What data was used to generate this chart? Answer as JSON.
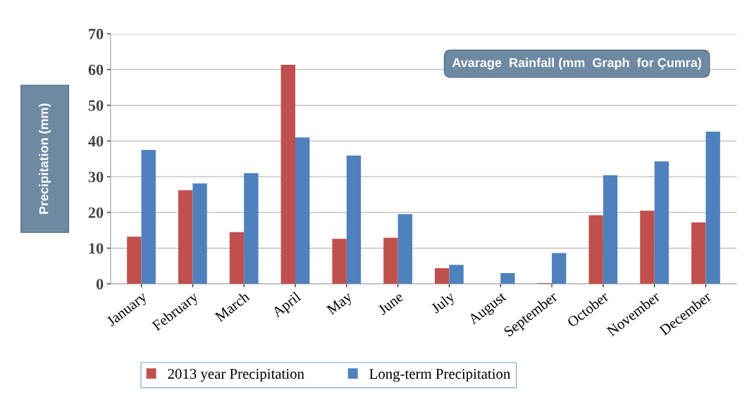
{
  "chart_data": {
    "type": "bar",
    "title": "Avarage  Rainfall (mm  Graph  for Çumra)",
    "ylabel": "Precipitation (mm)",
    "categories": [
      "January",
      "February",
      "March",
      "April",
      "May",
      "June",
      "July",
      "August",
      "September",
      "October",
      "November",
      "December"
    ],
    "series": [
      {
        "name": "2013 year Precipitation",
        "color": "#c0504d",
        "values": [
          13.2,
          26.2,
          14.5,
          61.3,
          12.6,
          12.9,
          4.4,
          0,
          0.2,
          19.2,
          20.5,
          17.2
        ]
      },
      {
        "name": "Long-term Precipitation",
        "color": "#4f81bd",
        "values": [
          37.5,
          28.1,
          31.0,
          41.0,
          35.9,
          19.5,
          5.3,
          3.0,
          8.6,
          30.4,
          34.3,
          42.6
        ]
      }
    ],
    "ylim": [
      0,
      70
    ],
    "yticks": [
      0,
      10,
      20,
      30,
      40,
      50,
      60,
      70
    ],
    "grid": "y",
    "legend": "bottom"
  }
}
